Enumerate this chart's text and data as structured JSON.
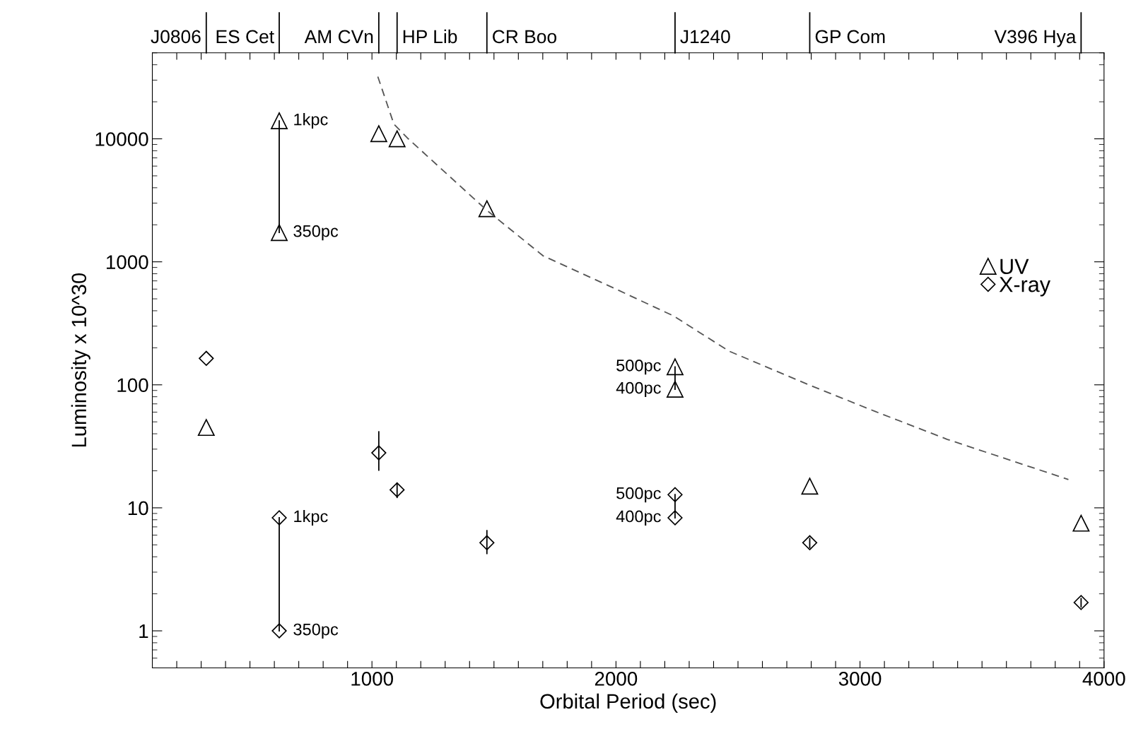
{
  "chart_data": {
    "type": "scatter",
    "xlabel": "Orbital Period (sec)",
    "ylabel": "Luminosity x 10^30",
    "log": "y",
    "xlim": [
      100,
      4000
    ],
    "ylim": [
      0.5,
      50000
    ],
    "xticks": [
      {
        "value": 200,
        "label": null
      },
      {
        "value": 300,
        "label": null
      },
      {
        "value": 400,
        "label": null
      },
      {
        "value": 500,
        "label": null
      },
      {
        "value": 600,
        "label": null
      },
      {
        "value": 700,
        "label": null
      },
      {
        "value": 800,
        "label": null
      },
      {
        "value": 900,
        "label": null
      },
      1000,
      {
        "value": 1100,
        "label": null
      },
      {
        "value": 1200,
        "label": null
      },
      {
        "value": 1300,
        "label": null
      },
      {
        "value": 1400,
        "label": null
      },
      {
        "value": 1500,
        "label": null
      },
      {
        "value": 1600,
        "label": null
      },
      {
        "value": 1700,
        "label": null
      },
      {
        "value": 1800,
        "label": null
      },
      {
        "value": 1900,
        "label": null
      },
      2000,
      {
        "value": 2100,
        "label": null
      },
      {
        "value": 2200,
        "label": null
      },
      {
        "value": 2300,
        "label": null
      },
      {
        "value": 2400,
        "label": null
      },
      {
        "value": 2500,
        "label": null
      },
      {
        "value": 2600,
        "label": null
      },
      {
        "value": 2700,
        "label": null
      },
      {
        "value": 2800,
        "label": null
      },
      {
        "value": 2900,
        "label": null
      },
      3000,
      {
        "value": 3100,
        "label": null
      },
      {
        "value": 3200,
        "label": null
      },
      {
        "value": 3300,
        "label": null
      },
      {
        "value": 3400,
        "label": null
      },
      {
        "value": 3500,
        "label": null
      },
      {
        "value": 3600,
        "label": null
      },
      {
        "value": 3700,
        "label": null
      },
      {
        "value": 3800,
        "label": null
      },
      {
        "value": 3900,
        "label": null
      },
      4000
    ],
    "yticks": [
      1,
      10,
      100,
      1000,
      10000
    ],
    "grid": false,
    "legend": "right",
    "series": [
      {
        "name": "UV",
        "color": "#000000",
        "marker": "triangle",
        "x": [
          321,
          620,
          620,
          1028,
          1103,
          1471,
          2242,
          2242,
          2794,
          3906
        ],
        "values": [
          45,
          14000,
          1730,
          11000,
          10000,
          2700,
          140,
          92,
          15,
          7.5
        ]
      },
      {
        "name": "X-ray",
        "color": "#000000",
        "marker": "diamond",
        "x": [
          321,
          620,
          620,
          1028,
          1103,
          1471,
          2242,
          2242,
          2794,
          3906
        ],
        "values": [
          164,
          8.3,
          1.0,
          28,
          14,
          5.2,
          12.8,
          8.3,
          5.2,
          1.7
        ],
        "errors": [
          null,
          null,
          null,
          [
            20,
            42
          ],
          [
            12,
            16
          ],
          [
            4.2,
            6.6
          ],
          null,
          null,
          [
            4.7,
            5.7
          ],
          [
            1.55,
            1.85
          ]
        ]
      },
      {
        "type": "line",
        "color": "#000000",
        "marker": "none",
        "line_style": "solid",
        "x": [
          620,
          620
        ],
        "values": [
          1730,
          14000
        ]
      },
      {
        "type": "line",
        "color": "#000000",
        "marker": "none",
        "line_style": "solid",
        "x": [
          620,
          620
        ],
        "values": [
          1.0,
          8.3
        ]
      },
      {
        "type": "line",
        "color": "#000000",
        "marker": "none",
        "line_style": "solid",
        "x": [
          2242,
          2242
        ],
        "values": [
          92,
          140
        ]
      },
      {
        "type": "line",
        "color": "#000000",
        "marker": "none",
        "line_style": "solid",
        "x": [
          2242,
          2242
        ],
        "values": [
          8.3,
          12.8
        ]
      },
      {
        "type": "line",
        "color": "#555555",
        "marker": "none",
        "line_style": "dashed",
        "x": [
          1024,
          1090,
          1149,
          1469,
          1701,
          2000,
          2236,
          2463,
          2785,
          3060,
          3358,
          3854
        ],
        "values": [
          32000,
          13150,
          10000,
          2640,
          1120,
          600,
          363,
          188,
          101,
          61,
          36,
          17
        ]
      }
    ],
    "annotations": [
      "1kpc",
      "350pc",
      "1kpc",
      "350pc",
      "500pc",
      "400pc",
      "500pc",
      "400pc",
      "J0806",
      "ES Cet",
      "AM CVn",
      "HP Lib",
      "CR Boo",
      "J1240",
      "GP Com",
      "V396 Hya"
    ]
  }
}
